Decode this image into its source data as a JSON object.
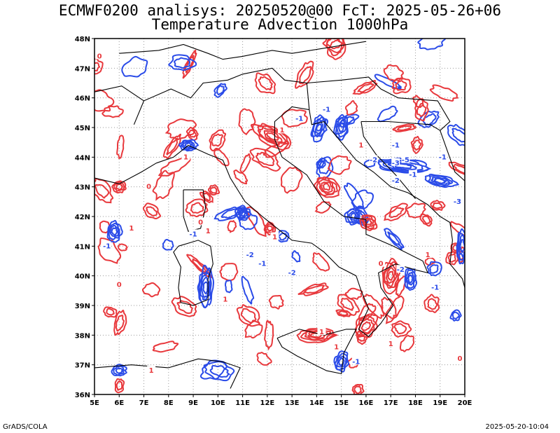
{
  "header": {
    "title_line1": "ECMWF0200 analisys: 20250520@00 FcT: 2025-05-26+06",
    "title_line2": "Temperature Advection 1000hPa"
  },
  "map": {
    "lat_labels": [
      "48N",
      "47N",
      "46N",
      "45N",
      "44N",
      "43N",
      "42N",
      "41N",
      "40N",
      "39N",
      "38N",
      "37N",
      "36N"
    ],
    "lon_labels": [
      "5E",
      "6E",
      "7E",
      "8E",
      "9E",
      "10E",
      "11E",
      "12E",
      "13E",
      "14E",
      "15E",
      "16E",
      "17E",
      "18E",
      "19E",
      "20E"
    ],
    "lat_range": [
      36,
      48
    ],
    "lon_range": [
      5,
      20
    ],
    "grid": "dotted",
    "colors": {
      "warm_advection": "#e8383c",
      "cold_advection": "#2a4be8",
      "coastline": "#000000",
      "grid": "#9a9a9a"
    },
    "contour_labels": [
      {
        "text": "0",
        "lon": 5.2,
        "lat": 47.4
      },
      {
        "text": "1",
        "lon": 12.6,
        "lat": 44.9
      },
      {
        "text": "-1",
        "lon": 13.3,
        "lat": 45.3
      },
      {
        "text": "-1",
        "lon": 14.4,
        "lat": 45.6
      },
      {
        "text": "1",
        "lon": 15.8,
        "lat": 44.4
      },
      {
        "text": "-1",
        "lon": 17.2,
        "lat": 44.4
      },
      {
        "text": "-1",
        "lon": 19.1,
        "lat": 44.0
      },
      {
        "text": "-3",
        "lon": 17.2,
        "lat": 43.8
      },
      {
        "text": "-5",
        "lon": 17.6,
        "lat": 43.9
      },
      {
        "text": "-2",
        "lon": 16.3,
        "lat": 43.9
      },
      {
        "text": "-2",
        "lon": 17.2,
        "lat": 43.2
      },
      {
        "text": "-1",
        "lon": 17.9,
        "lat": 43.4
      },
      {
        "text": "-3",
        "lon": 19.7,
        "lat": 42.5
      },
      {
        "text": "1",
        "lon": 8.7,
        "lat": 44.0
      },
      {
        "text": "0",
        "lon": 7.2,
        "lat": 43.0
      },
      {
        "text": "1",
        "lon": 6.5,
        "lat": 41.6
      },
      {
        "text": "0",
        "lon": 9.3,
        "lat": 41.8
      },
      {
        "text": "1",
        "lon": 9.6,
        "lat": 41.5
      },
      {
        "text": "-1",
        "lon": 5.5,
        "lat": 41.0
      },
      {
        "text": "-1",
        "lon": 9.0,
        "lat": 41.4
      },
      {
        "text": "1",
        "lon": 12.3,
        "lat": 41.3
      },
      {
        "text": "-2",
        "lon": 11.3,
        "lat": 40.7
      },
      {
        "text": "-1",
        "lon": 11.8,
        "lat": 40.4
      },
      {
        "text": "-2",
        "lon": 13.0,
        "lat": 40.1
      },
      {
        "text": "1",
        "lon": 10.3,
        "lat": 39.2
      },
      {
        "text": "1",
        "lon": 14.2,
        "lat": 38.1
      },
      {
        "text": "0",
        "lon": 16.6,
        "lat": 40.4
      },
      {
        "text": "-2",
        "lon": 17.4,
        "lat": 40.2
      },
      {
        "text": "1",
        "lon": 18.5,
        "lat": 40.7
      },
      {
        "text": "-1",
        "lon": 18.8,
        "lat": 39.6
      },
      {
        "text": "1",
        "lon": 14.8,
        "lat": 37.6
      },
      {
        "text": "-1",
        "lon": 15.6,
        "lat": 37.1
      },
      {
        "text": "1",
        "lon": 17.0,
        "lat": 37.7
      },
      {
        "text": "0",
        "lon": 6.0,
        "lat": 39.7
      },
      {
        "text": "1",
        "lon": 7.3,
        "lat": 36.8
      },
      {
        "text": "0",
        "lon": 19.8,
        "lat": 37.2
      }
    ]
  },
  "footer": {
    "left": "GrADS/COLA",
    "right": "2025-05-20-10:04"
  }
}
